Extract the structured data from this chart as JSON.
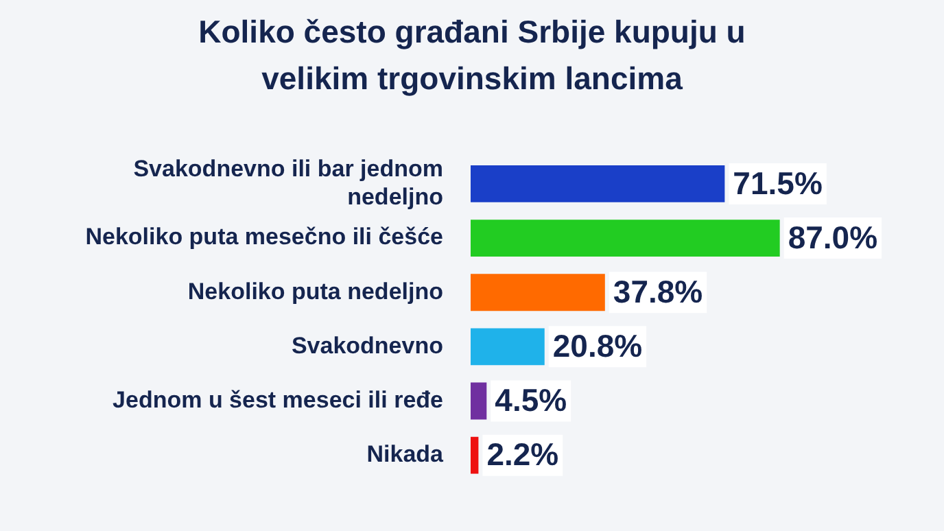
{
  "chart_data": {
    "type": "bar",
    "orientation": "horizontal",
    "title": "Koliko često građani Srbije kupuju u velikim trgovinskim lancima",
    "categories": [
      "Svakodnevno ili bar jednom nedeljno",
      "Nekoliko puta mesečno ili češće",
      "Nekoliko puta nedeljno",
      "Svakodnevno",
      "Jednom u šest meseci ili ređe",
      "Nikada"
    ],
    "values": [
      71.5,
      87.0,
      37.8,
      20.8,
      4.5,
      2.2
    ],
    "value_labels": [
      "71.5%",
      "87.0%",
      "37.8%",
      "20.8%",
      "4.5%",
      "2.2%"
    ],
    "colors": [
      "#1a3fc8",
      "#22cc22",
      "#ff6a00",
      "#1fb2ea",
      "#7030a0",
      "#ee1111"
    ],
    "legend": false
  }
}
